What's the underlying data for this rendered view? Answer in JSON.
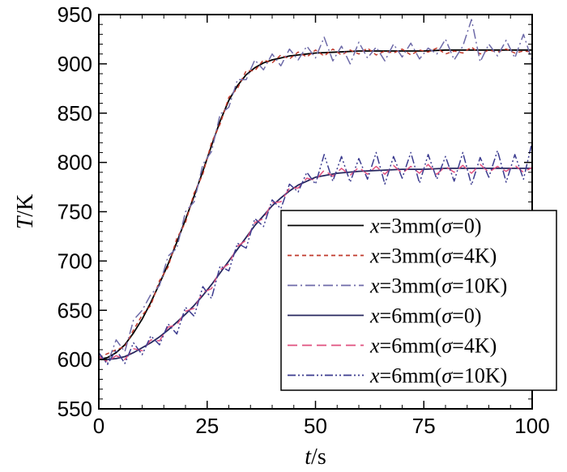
{
  "chart_data": {
    "type": "line",
    "title": "",
    "xlabel": {
      "var": "t",
      "unit": "/s"
    },
    "ylabel": {
      "var": "T",
      "unit": "/K"
    },
    "xlim": [
      0,
      100
    ],
    "ylim": [
      550,
      950
    ],
    "xticks": [
      0,
      25,
      50,
      75,
      100
    ],
    "yticks": [
      550,
      600,
      650,
      700,
      750,
      800,
      850,
      900,
      950
    ],
    "grid": false,
    "legend_position": "lower-right",
    "series": [
      {
        "name": "x=3mm(σ=0)",
        "legend": {
          "var": "x",
          "pre": "=3mm(",
          "sym": "σ",
          "post": "=0)"
        },
        "color": "#000000",
        "dash": "solid",
        "x": [
          0,
          2,
          4,
          6,
          8,
          10,
          12,
          14,
          16,
          18,
          20,
          22,
          24,
          26,
          28,
          30,
          32,
          34,
          36,
          38,
          40,
          42,
          44,
          46,
          48,
          50,
          55,
          60,
          65,
          70,
          75,
          80,
          85,
          90,
          95,
          100
        ],
        "y": [
          600,
          602,
          607,
          615,
          627,
          641,
          658,
          677,
          697,
          719,
          742,
          766,
          791,
          817,
          842,
          863,
          878,
          889,
          896,
          901,
          904,
          906,
          908,
          909,
          910,
          911,
          912,
          913,
          913,
          913,
          913,
          914,
          914,
          914,
          914,
          914
        ]
      },
      {
        "name": "x=3mm(σ=4K)",
        "legend": {
          "var": "x",
          "pre": "=3mm(",
          "sym": "σ",
          "post": "=4K)"
        },
        "color": "#c0392b",
        "dash": "dashed",
        "x": [
          0,
          2,
          4,
          6,
          8,
          10,
          12,
          14,
          16,
          18,
          20,
          22,
          24,
          26,
          28,
          30,
          32,
          34,
          36,
          38,
          40,
          42,
          44,
          46,
          48,
          50,
          52,
          54,
          56,
          58,
          60,
          62,
          64,
          66,
          68,
          70,
          72,
          74,
          76,
          78,
          80,
          82,
          84,
          86,
          88,
          90,
          92,
          94,
          96,
          98,
          100
        ],
        "y": [
          602,
          606,
          610,
          613,
          630,
          645,
          655,
          680,
          694,
          723,
          739,
          769,
          788,
          820,
          839,
          866,
          875,
          893,
          893,
          904,
          901,
          909,
          905,
          912,
          907,
          914,
          908,
          915,
          909,
          914,
          910,
          916,
          909,
          913,
          911,
          915,
          909,
          914,
          912,
          916,
          910,
          913,
          911,
          917,
          910,
          914,
          912,
          915,
          911,
          913,
          912
        ]
      },
      {
        "name": "x=3mm(σ=10K)",
        "legend": {
          "var": "x",
          "pre": "=3mm(",
          "sym": "σ",
          "post": "=10K)"
        },
        "color": "#6d6aa8",
        "dash": "dashdot",
        "x": [
          0,
          2,
          4,
          6,
          8,
          10,
          12,
          14,
          16,
          18,
          20,
          22,
          24,
          26,
          28,
          30,
          32,
          34,
          36,
          38,
          40,
          42,
          44,
          46,
          48,
          50,
          52,
          54,
          56,
          58,
          60,
          62,
          64,
          66,
          68,
          70,
          72,
          74,
          76,
          78,
          80,
          82,
          84,
          86,
          88,
          90,
          92,
          94,
          96,
          98,
          100
        ],
        "y": [
          606,
          596,
          620,
          608,
          640,
          650,
          666,
          675,
          705,
          713,
          750,
          760,
          798,
          811,
          849,
          856,
          884,
          884,
          904,
          894,
          910,
          898,
          915,
          904,
          918,
          906,
          927,
          903,
          918,
          900,
          922,
          906,
          917,
          903,
          920,
          907,
          921,
          905,
          916,
          910,
          925,
          904,
          918,
          945,
          902,
          920,
          908,
          924,
          906,
          930,
          903
        ]
      },
      {
        "name": "x=6mm(σ=0)",
        "legend": {
          "var": "x",
          "pre": "=6mm(",
          "sym": "σ",
          "post": "=0)"
        },
        "color": "#26265e",
        "dash": "solid",
        "x": [
          0,
          2,
          4,
          6,
          8,
          10,
          12,
          14,
          16,
          18,
          20,
          22,
          24,
          26,
          28,
          30,
          32,
          34,
          36,
          38,
          40,
          42,
          44,
          46,
          48,
          50,
          55,
          60,
          65,
          70,
          75,
          80,
          85,
          90,
          95,
          100
        ],
        "y": [
          600,
          600,
          601,
          603,
          607,
          612,
          617,
          623,
          630,
          638,
          646,
          655,
          665,
          676,
          688,
          700,
          712,
          724,
          736,
          746,
          756,
          764,
          771,
          777,
          781,
          785,
          789,
          791,
          792,
          793,
          793,
          794,
          794,
          794,
          794,
          794
        ]
      },
      {
        "name": "x=6mm(σ=4K)",
        "legend": {
          "var": "x",
          "pre": "=6mm(",
          "sym": "σ",
          "post": "=4K)"
        },
        "color": "#e0507e",
        "dash": "longdash",
        "x": [
          0,
          2,
          4,
          6,
          8,
          10,
          12,
          14,
          16,
          18,
          20,
          22,
          24,
          26,
          28,
          30,
          32,
          34,
          36,
          38,
          40,
          42,
          44,
          46,
          48,
          50,
          52,
          54,
          56,
          58,
          60,
          62,
          64,
          66,
          68,
          70,
          72,
          74,
          76,
          78,
          80,
          82,
          84,
          86,
          88,
          90,
          92,
          94,
          96,
          98,
          100
        ],
        "y": [
          603,
          598,
          604,
          600,
          611,
          609,
          620,
          619,
          633,
          635,
          649,
          652,
          668,
          672,
          691,
          697,
          715,
          721,
          739,
          743,
          759,
          760,
          774,
          774,
          784,
          782,
          792,
          786,
          794,
          787,
          795,
          788,
          796,
          788,
          797,
          789,
          796,
          789,
          798,
          788,
          796,
          790,
          797,
          789,
          798,
          790,
          796,
          791,
          797,
          790,
          795
        ]
      },
      {
        "name": "x=6mm(σ=10K)",
        "legend": {
          "var": "x",
          "pre": "=6mm(",
          "sym": "σ",
          "post": "=10K)"
        },
        "color": "#3b3b8f",
        "dash": "dashdotdot",
        "x": [
          0,
          2,
          4,
          6,
          8,
          10,
          12,
          14,
          16,
          18,
          20,
          22,
          24,
          26,
          28,
          30,
          32,
          34,
          36,
          38,
          40,
          42,
          44,
          46,
          48,
          50,
          52,
          54,
          56,
          58,
          60,
          62,
          64,
          66,
          68,
          70,
          72,
          74,
          76,
          78,
          80,
          82,
          84,
          86,
          88,
          90,
          92,
          94,
          96,
          98,
          100
        ],
        "y": [
          607,
          595,
          610,
          596,
          617,
          605,
          624,
          615,
          636,
          626,
          653,
          644,
          674,
          662,
          695,
          690,
          718,
          713,
          743,
          735,
          762,
          753,
          778,
          770,
          790,
          778,
          808,
          781,
          806,
          780,
          804,
          783,
          810,
          778,
          806,
          784,
          810,
          779,
          808,
          783,
          806,
          781,
          810,
          777,
          805,
          785,
          812,
          780,
          808,
          783,
          821
        ]
      }
    ]
  }
}
